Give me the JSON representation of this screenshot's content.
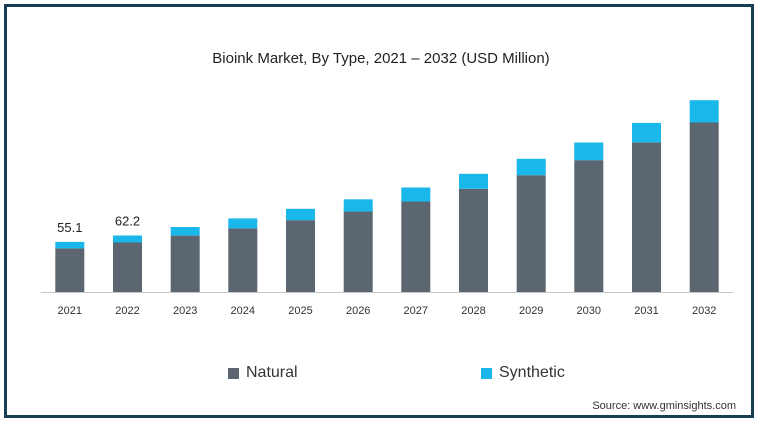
{
  "chart_data": {
    "type": "bar",
    "stacked": true,
    "title": "Bioink Market, By Type, 2021 – 2032 (USD Million)",
    "categories": [
      "2021",
      "2022",
      "2023",
      "2024",
      "2025",
      "2026",
      "2027",
      "2028",
      "2029",
      "2030",
      "2031",
      "2032"
    ],
    "series": [
      {
        "name": "Natural",
        "color": "#5b6670",
        "values": [
          48.0,
          54.5,
          62.0,
          70.0,
          79.0,
          88.5,
          99.5,
          113.5,
          128.5,
          145.0,
          164.5,
          186.5
        ]
      },
      {
        "name": "Synthetic",
        "color": "#1ab7ea",
        "values": [
          7.1,
          7.7,
          9.5,
          11.0,
          12.5,
          13.5,
          15.5,
          16.5,
          18.0,
          19.5,
          21.5,
          24.5
        ]
      }
    ],
    "data_labels": [
      {
        "category": "2021",
        "text": "55.1"
      },
      {
        "category": "2022",
        "text": "62.2"
      }
    ],
    "ylim": [
      0,
      220
    ],
    "grid": false,
    "legend_position": "bottom",
    "source": "Source: www.gminsights.com"
  }
}
